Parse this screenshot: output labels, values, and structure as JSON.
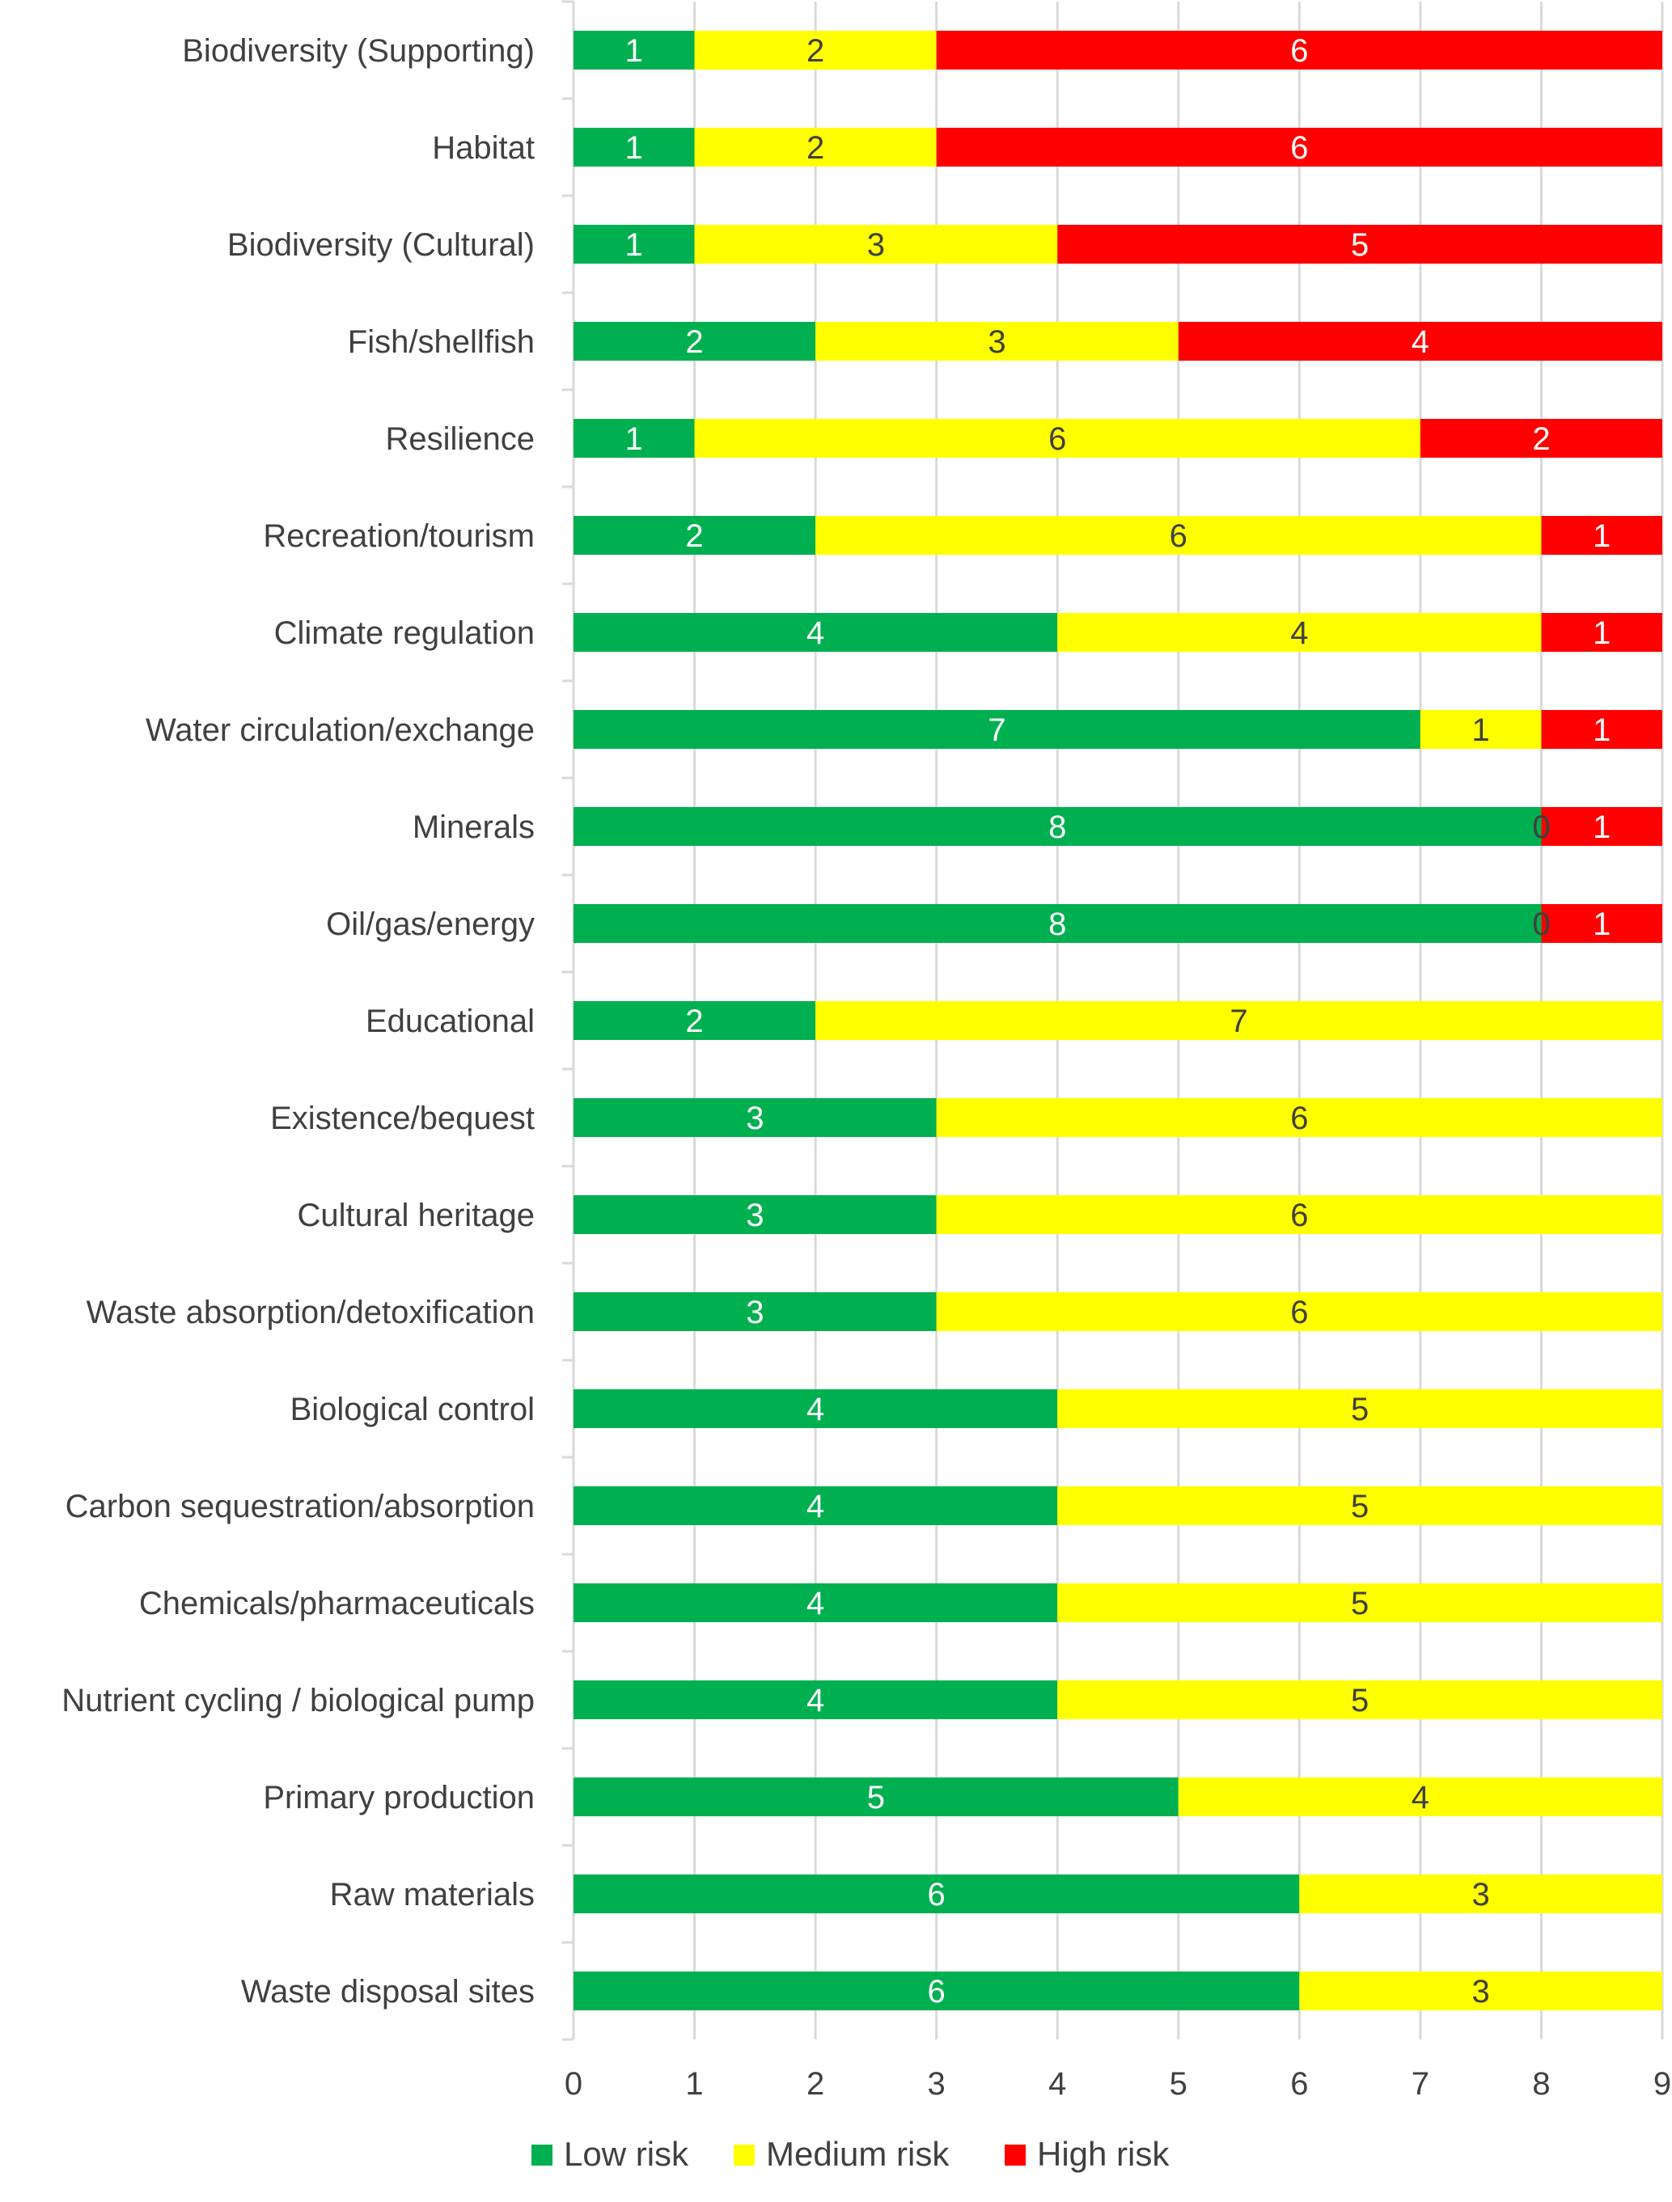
{
  "chart_data": {
    "type": "bar",
    "orientation": "horizontal",
    "stacked": true,
    "title": "",
    "xlabel": "",
    "ylabel": "",
    "xlim": [
      0,
      9
    ],
    "xticks": [
      0,
      1,
      2,
      3,
      4,
      5,
      6,
      7,
      8,
      9
    ],
    "grid": true,
    "legend_position": "bottom",
    "categories": [
      "Biodiversity (Supporting)",
      "Habitat",
      "Biodiversity (Cultural)",
      "Fish/shellfish",
      "Resilience",
      "Recreation/tourism",
      "Climate regulation",
      "Water circulation/exchange",
      "Minerals",
      "Oil/gas/energy",
      "Educational",
      "Existence/bequest",
      "Cultural heritage",
      "Waste absorption/detoxification",
      "Biological control",
      "Carbon sequestration/absorption",
      "Chemicals/pharmaceuticals",
      "Nutrient cycling / biological pump",
      "Primary production",
      "Raw materials",
      "Waste disposal sites"
    ],
    "series": [
      {
        "name": "Low risk",
        "color": "#00b050",
        "label_color": "#ffffff",
        "values": [
          1,
          1,
          1,
          2,
          1,
          2,
          4,
          7,
          8,
          8,
          2,
          3,
          3,
          3,
          4,
          4,
          4,
          4,
          5,
          6,
          6
        ],
        "labels": [
          "1",
          "1",
          "1",
          "2",
          "1",
          "2",
          "4",
          "7",
          "8",
          "8",
          "2",
          "3",
          "3",
          "3",
          "4",
          "4",
          "4",
          "4",
          "5",
          "6",
          "6"
        ]
      },
      {
        "name": "Medium risk",
        "color": "#ffff00",
        "label_color": "#404040",
        "values": [
          2,
          2,
          3,
          3,
          6,
          6,
          4,
          1,
          0,
          0,
          7,
          6,
          6,
          6,
          5,
          5,
          5,
          5,
          4,
          3,
          3
        ],
        "labels": [
          "2",
          "2",
          "3",
          "3",
          "6",
          "6",
          "4",
          "1",
          "0",
          "0",
          "7",
          "6",
          "6",
          "6",
          "5",
          "5",
          "5",
          "5",
          "4",
          "3",
          "3"
        ]
      },
      {
        "name": "High risk",
        "color": "#ff0000",
        "label_color": "#ffffff",
        "values": [
          6,
          6,
          5,
          4,
          2,
          1,
          1,
          1,
          1,
          1,
          0,
          0,
          0,
          0,
          0,
          0,
          0,
          0,
          0,
          0,
          0
        ],
        "labels": [
          "6",
          "6",
          "5",
          "4",
          "2",
          "1",
          "1",
          "1",
          "1",
          "1",
          "",
          "",
          "",
          "",
          "",
          "",
          "",
          "",
          "",
          "",
          ""
        ]
      }
    ]
  }
}
